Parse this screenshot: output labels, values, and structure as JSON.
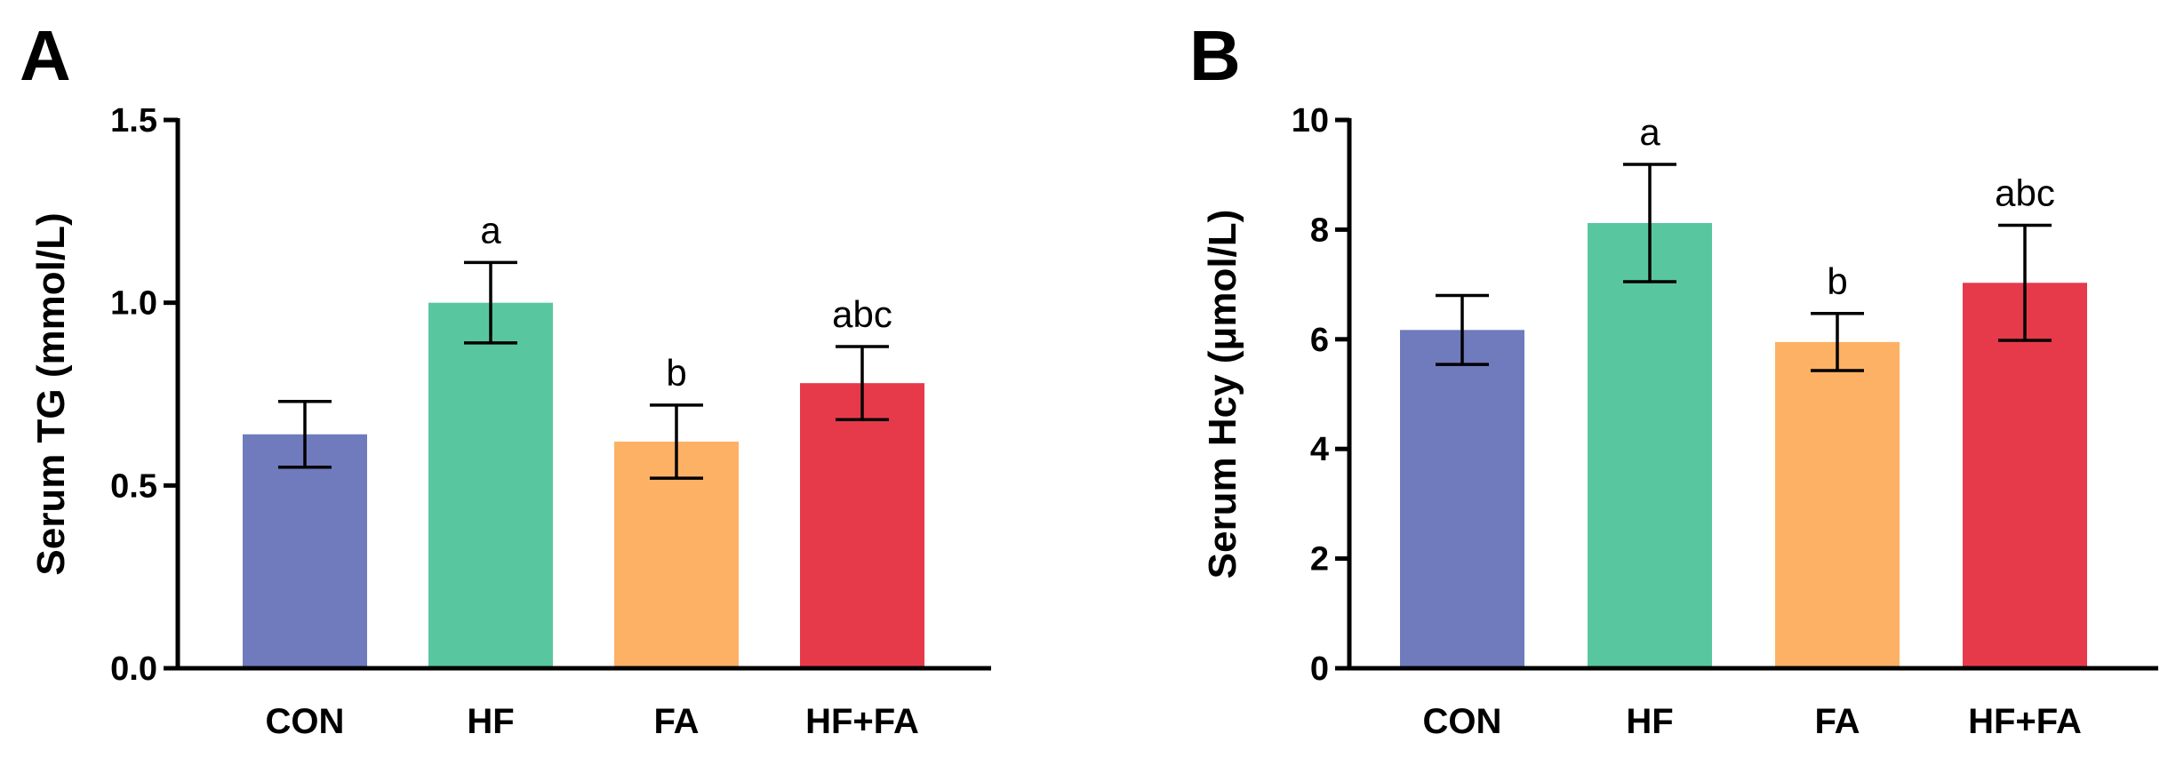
{
  "chart_data": [
    {
      "type": "bar",
      "panel": "A",
      "title": "",
      "xlabel": "",
      "ylabel": "Serum TG (mmol/L)",
      "ylim": [
        0,
        1.5
      ],
      "yticks": [
        "0.0",
        "0.5",
        "1.0",
        "1.5"
      ],
      "ytick_values": [
        0,
        0.5,
        1.0,
        1.5
      ],
      "categories": [
        "CON",
        "HF",
        "FA",
        "HF+FA"
      ],
      "values": [
        0.64,
        1.0,
        0.62,
        0.78
      ],
      "errors": [
        0.09,
        0.11,
        0.1,
        0.1
      ],
      "significance": [
        "",
        "a",
        "b",
        "abc"
      ],
      "colors": [
        "#6f7bbd",
        "#58c79f",
        "#fdb165",
        "#e63a4b"
      ]
    },
    {
      "type": "bar",
      "panel": "B",
      "title": "",
      "xlabel": "",
      "ylabel": "Serum Hcy (μmol/L)",
      "ylim": [
        0,
        10
      ],
      "yticks": [
        "0",
        "2",
        "4",
        "6",
        "8",
        "10"
      ],
      "ytick_values": [
        0,
        2,
        4,
        6,
        8,
        10
      ],
      "categories": [
        "CON",
        "HF",
        "FA",
        "HF+FA"
      ],
      "values": [
        6.17,
        8.12,
        5.95,
        7.03
      ],
      "errors": [
        0.63,
        1.07,
        0.52,
        1.05
      ],
      "significance": [
        "",
        "a",
        "b",
        "abc"
      ],
      "colors": [
        "#6f7bbd",
        "#58c79f",
        "#fdb165",
        "#e63a4b"
      ]
    }
  ]
}
